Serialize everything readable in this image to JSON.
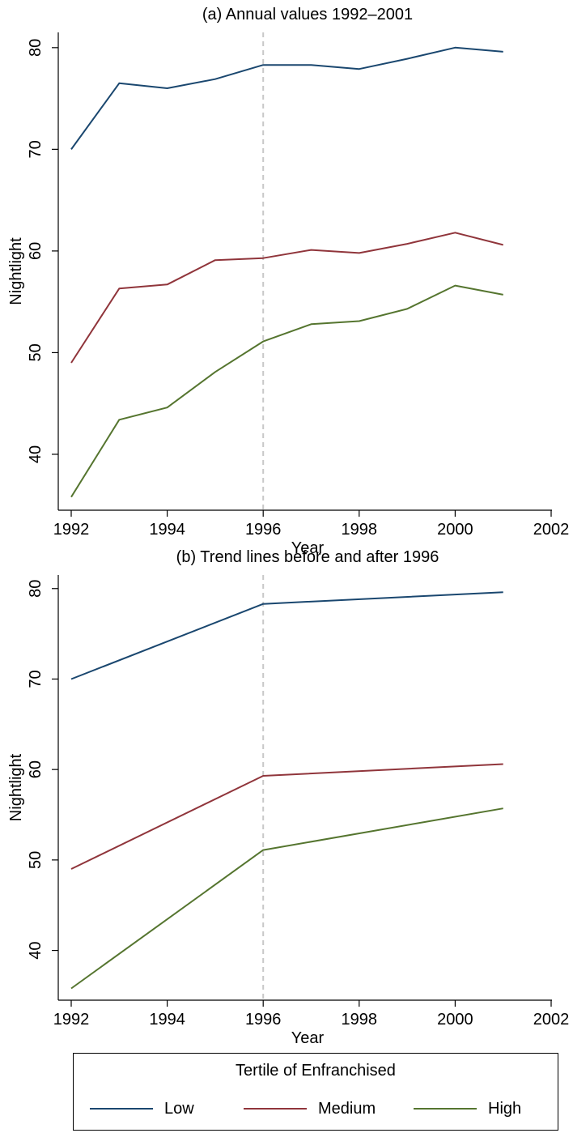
{
  "chart_data": [
    {
      "type": "line",
      "title": "(a) Annual values 1992–2001",
      "xlabel": "Year",
      "ylabel": "Nightlight",
      "xlim": [
        1992,
        2002
      ],
      "ylim": [
        34.5,
        81.5
      ],
      "xticks": [
        "1992",
        "1994",
        "1996",
        "1998",
        "2000",
        "2002"
      ],
      "yticks": [
        "40",
        "50",
        "60",
        "70",
        "80"
      ],
      "grid": false,
      "reference_line_x": 1996,
      "x": [
        1992,
        1993,
        1994,
        1995,
        1996,
        1997,
        1998,
        1999,
        2000,
        2001
      ],
      "series": [
        {
          "name": "Low",
          "color": "#1a476f",
          "values": [
            70.0,
            76.5,
            76.0,
            76.9,
            78.3,
            78.3,
            77.9,
            78.9,
            80.0,
            79.6
          ]
        },
        {
          "name": "Medium",
          "color": "#90353b",
          "values": [
            49.0,
            56.3,
            56.7,
            59.1,
            59.3,
            60.1,
            59.8,
            60.7,
            61.8,
            60.6
          ]
        },
        {
          "name": "High",
          "color": "#55752f",
          "values": [
            35.8,
            43.4,
            44.6,
            48.1,
            51.1,
            52.8,
            53.1,
            54.3,
            56.6,
            55.7
          ]
        }
      ]
    },
    {
      "type": "line",
      "title": "(b) Trend lines before and after 1996",
      "xlabel": "Year",
      "ylabel": "Nightlight",
      "xlim": [
        1992,
        2002
      ],
      "ylim": [
        34.5,
        81.5
      ],
      "xticks": [
        "1992",
        "1994",
        "1996",
        "1998",
        "2000",
        "2002"
      ],
      "yticks": [
        "40",
        "50",
        "60",
        "70",
        "80"
      ],
      "grid": false,
      "reference_line_x": 1996,
      "x": [
        1992,
        1996,
        2001
      ],
      "series": [
        {
          "name": "Low",
          "color": "#1a476f",
          "values": [
            70.0,
            78.3,
            79.6
          ]
        },
        {
          "name": "Medium",
          "color": "#90353b",
          "values": [
            49.0,
            59.3,
            60.6
          ]
        },
        {
          "name": "High",
          "color": "#55752f",
          "values": [
            35.8,
            51.1,
            55.7
          ]
        }
      ]
    }
  ],
  "legend": {
    "title": "Tertile of Enfranchised",
    "placement": "bottom",
    "items": [
      {
        "label": "Low",
        "color": "#1a476f"
      },
      {
        "label": "Medium",
        "color": "#90353b"
      },
      {
        "label": "High",
        "color": "#55752f"
      }
    ]
  }
}
